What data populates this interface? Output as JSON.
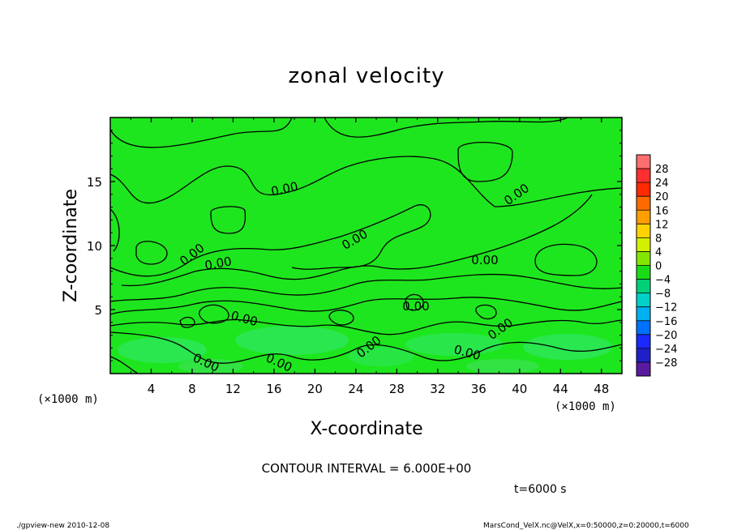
{
  "chart_data": {
    "type": "contour",
    "title": "zonal velocity",
    "xlabel": "X-coordinate",
    "ylabel": "Z-coordinate",
    "x_unit_left": "(×1000 m)",
    "x_unit_right": "(×1000 m)",
    "xlim": [
      0,
      50
    ],
    "ylim": [
      0,
      20
    ],
    "x_ticks": [
      4,
      8,
      12,
      16,
      20,
      24,
      28,
      32,
      36,
      40,
      44,
      48
    ],
    "y_ticks": [
      5,
      10,
      15
    ],
    "contour_label": "0.00",
    "contour_interval_text": "CONTOUR INTERVAL = 6.000E+00",
    "time_text": "t=6000 s",
    "colorbar": {
      "levels": [
        28,
        24,
        20,
        16,
        12,
        8,
        4,
        0,
        -4,
        -8,
        -12,
        -16,
        -20,
        -24,
        -28
      ],
      "level_labels": [
        "28",
        "24",
        "20",
        "16",
        "12",
        "8",
        "4",
        "0",
        "−4",
        "−8",
        "−12",
        "−16",
        "−20",
        "−24",
        "−28"
      ],
      "colors": [
        "#ff6e6e",
        "#ff2f2f",
        "#ff2a00",
        "#ff6a00",
        "#ff9e00",
        "#ffd200",
        "#d2f000",
        "#82e600",
        "#18dc18",
        "#00d078",
        "#00d0c8",
        "#00b0f0",
        "#0070ff",
        "#1a2aff",
        "#2020c8",
        "#5a1aa0"
      ]
    }
  },
  "footer": {
    "left": "./gpview-new   2010-12-08",
    "right": "MarsCond_VelX.nc@VelX,x=0:50000,z=0:20000,t=6000"
  }
}
